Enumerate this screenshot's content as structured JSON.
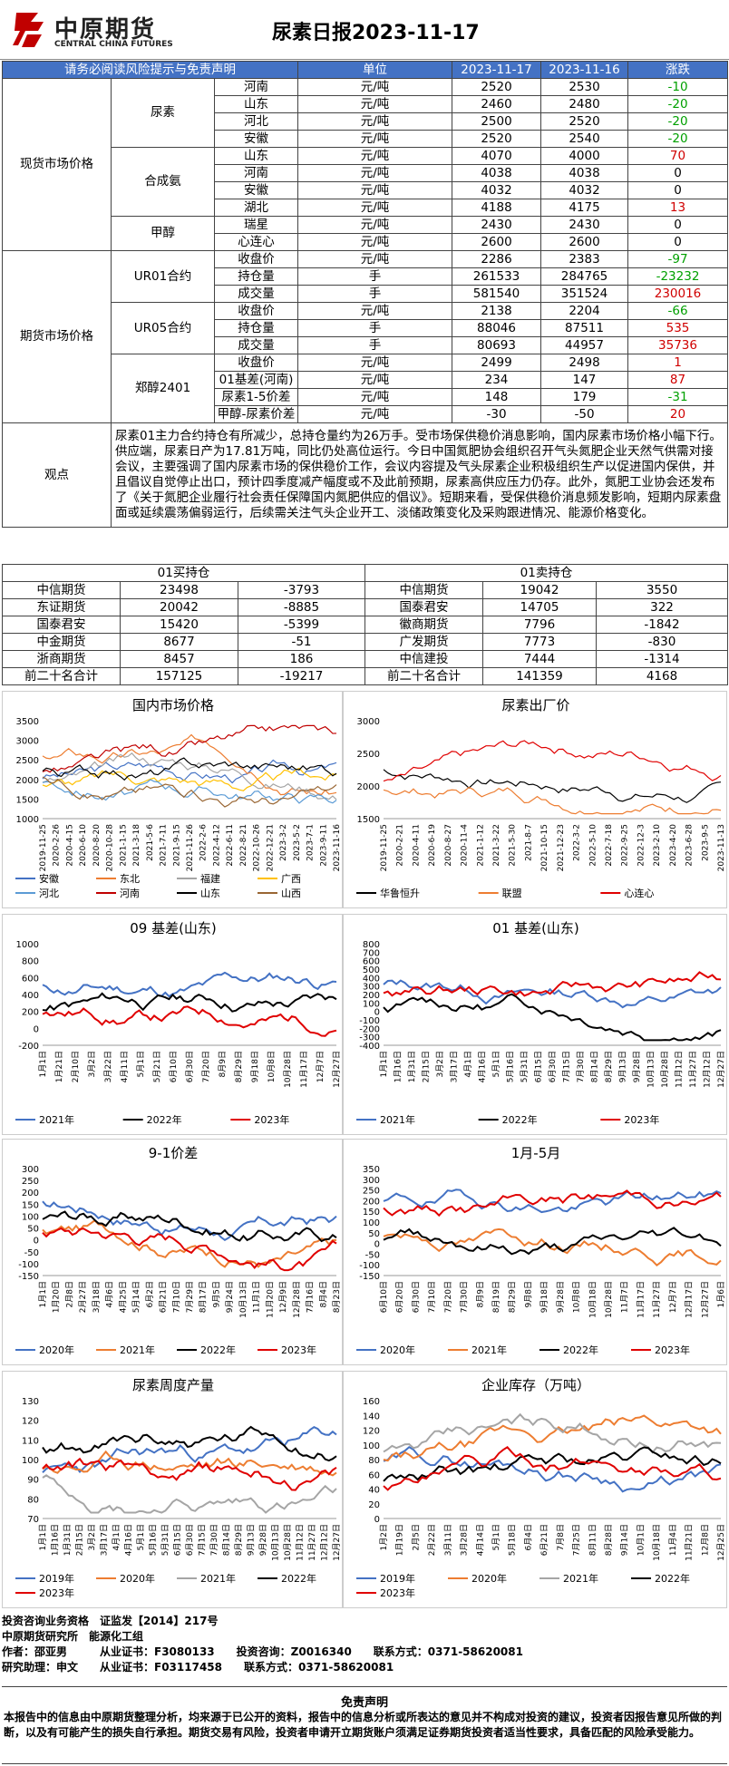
{
  "header": {
    "logo_cn": "中原期货",
    "logo_en": "CENTRAL CHINA FUTURES",
    "title": "尿素日报2023-11-17",
    "brand_color": "#c00000"
  },
  "table": {
    "header": [
      "请务必阅读风险提示与免责声明",
      "单位",
      "2023-11-17",
      "2023-11-16",
      "涨跌"
    ],
    "spot_label": "现货市场价格",
    "spot": [
      {
        "group": "尿素",
        "name": "河南",
        "unit": "元/吨",
        "a": "2520",
        "b": "2530",
        "chg": "-10",
        "c": "green"
      },
      {
        "group": "",
        "name": "山东",
        "unit": "元/吨",
        "a": "2460",
        "b": "2480",
        "chg": "-20",
        "c": "green"
      },
      {
        "group": "",
        "name": "河北",
        "unit": "元/吨",
        "a": "2500",
        "b": "2520",
        "chg": "-20",
        "c": "green"
      },
      {
        "group": "",
        "name": "安徽",
        "unit": "元/吨",
        "a": "2520",
        "b": "2540",
        "chg": "-20",
        "c": "green"
      },
      {
        "group": "合成氨",
        "name": "山东",
        "unit": "元/吨",
        "a": "4070",
        "b": "4000",
        "chg": "70",
        "c": "red"
      },
      {
        "group": "",
        "name": "河南",
        "unit": "元/吨",
        "a": "4038",
        "b": "4038",
        "chg": "0",
        "c": ""
      },
      {
        "group": "",
        "name": "安徽",
        "unit": "元/吨",
        "a": "4032",
        "b": "4032",
        "chg": "0",
        "c": ""
      },
      {
        "group": "",
        "name": "湖北",
        "unit": "元/吨",
        "a": "4188",
        "b": "4175",
        "chg": "13",
        "c": "red"
      },
      {
        "group": "甲醇",
        "name": "瑞星",
        "unit": "元/吨",
        "a": "2430",
        "b": "2430",
        "chg": "0",
        "c": ""
      },
      {
        "group": "",
        "name": "心连心",
        "unit": "元/吨",
        "a": "2600",
        "b": "2600",
        "chg": "0",
        "c": ""
      }
    ],
    "fut_label": "期货市场价格",
    "fut": [
      {
        "group": "UR01合约",
        "name": "收盘价",
        "unit": "元/吨",
        "a": "2286",
        "b": "2383",
        "chg": "-97",
        "c": "green"
      },
      {
        "group": "",
        "name": "持仓量",
        "unit": "手",
        "a": "261533",
        "b": "284765",
        "chg": "-23232",
        "c": "green"
      },
      {
        "group": "",
        "name": "成交量",
        "unit": "手",
        "a": "581540",
        "b": "351524",
        "chg": "230016",
        "c": "red"
      },
      {
        "group": "UR05合约",
        "name": "收盘价",
        "unit": "元/吨",
        "a": "2138",
        "b": "2204",
        "chg": "-66",
        "c": "green"
      },
      {
        "group": "",
        "name": "持仓量",
        "unit": "手",
        "a": "88046",
        "b": "87511",
        "chg": "535",
        "c": "red"
      },
      {
        "group": "",
        "name": "成交量",
        "unit": "手",
        "a": "80693",
        "b": "44957",
        "chg": "35736",
        "c": "red"
      },
      {
        "group": "郑醇2401",
        "name": "收盘价",
        "unit": "元/吨",
        "a": "2499",
        "b": "2498",
        "chg": "1",
        "c": "red"
      },
      {
        "group": "",
        "name": "01基差(河南)",
        "unit": "元/吨",
        "a": "234",
        "b": "147",
        "chg": "87",
        "c": "red"
      },
      {
        "group": "",
        "name": "尿素1-5价差",
        "unit": "元/吨",
        "a": "148",
        "b": "179",
        "chg": "-31",
        "c": "green"
      },
      {
        "group": "",
        "name": "甲醇-尿素价差",
        "unit": "元/吨",
        "a": "-30",
        "b": "-50",
        "chg": "20",
        "c": "red"
      }
    ],
    "obs_label": "观点",
    "obs_text": "尿素01主力合约持仓有所减少，总持仓量约为26万手。受市场保供稳价消息影响，国内尿素市场价格小幅下行。供应端，尿素日产为17.81万吨，同比仍处高位运行。今日中国氮肥协会组织召开气头氮肥企业天然气供需对接会议，主要强调了国内尿素市场的保供稳价工作，会议内容提及气头尿素企业积极组织生产以促进国内保供，并且倡议自觉停止出口，预计四季度减产幅度或不及此前预期，尿素高供应压力仍存。此外，氮肥工业协会还发布了《关于氮肥企业履行社会责任保障国内氮肥供应的倡议》。短期来看，受保供稳价消息频发影响，短期内尿素盘面或延续震荡偏弱运行，后续需关注气头企业开工、淡储政策变化及采购跟进情况、能源价格变化。"
  },
  "positions": {
    "head_left": "01买持仓",
    "head_right": "01卖持仓",
    "rows": [
      {
        "l": "中信期货",
        "lv": "23498",
        "lc": "-3793",
        "r": "中信期货",
        "rv": "19042",
        "rc": "3550"
      },
      {
        "l": "东证期货",
        "lv": "20042",
        "lc": "-8885",
        "r": "国泰君安",
        "rv": "14705",
        "rc": "322"
      },
      {
        "l": "国泰君安",
        "lv": "15420",
        "lc": "-5399",
        "r": "徽商期货",
        "rv": "7796",
        "rc": "-1842"
      },
      {
        "l": "中金期货",
        "lv": "8677",
        "lc": "-51",
        "r": "广发期货",
        "rv": "7773",
        "rc": "-830"
      },
      {
        "l": "浙商期货",
        "lv": "8457",
        "lc": "186",
        "r": "中信建投",
        "rv": "7444",
        "rc": "-1314"
      },
      {
        "l": "前二十名合计",
        "lv": "157125",
        "lc": "-19217",
        "r": "前二十名合计",
        "rv": "141359",
        "rc": "4168"
      }
    ]
  },
  "chart_data": [
    {
      "type": "line",
      "title": "国内市场价格",
      "yticks": [
        "3500",
        "3000",
        "2500",
        "2000",
        "1500",
        "1000"
      ],
      "xticks": [
        "2019-11-25",
        "2020-2-26",
        "2020-4-15",
        "2020-6-10",
        "2020-8-20",
        "2020-10-28",
        "2021-1-15",
        "2021-3-18",
        "2021-5-6",
        "2021-7-11",
        "2021-9-15",
        "2021-11-26",
        "2022-2-6",
        "2022-4-12",
        "2022-6-11",
        "2022-8-21",
        "2022-10-26",
        "2022-12-21",
        "2023-3-2",
        "2023-5-2",
        "2023-7-1",
        "2023-9-11",
        "2023-11-16"
      ],
      "legend": [
        "安徽",
        "东北",
        "福建",
        "广西",
        "河北",
        "河南",
        "山东",
        "山西"
      ],
      "colors": [
        "#4472c4",
        "#ed7d31",
        "#a5a5a5",
        "#ffc000",
        "#5b9bd5",
        "#c00000",
        "#000000",
        "#996633"
      ],
      "ylim": [
        1000,
        3500
      ]
    },
    {
      "type": "line",
      "title": "尿素出厂价",
      "yticks": [
        "3000",
        "2500",
        "2000",
        "1500"
      ],
      "xticks": [
        "2019-11-25",
        "2020-2-21",
        "2020-4-11",
        "2020-6-19",
        "2020-8-27",
        "2020-11-4",
        "2021-1-12",
        "2021-3-22",
        "2021-5-30",
        "2021-8-7",
        "2021-10-15",
        "2021-12-23",
        "2022-3-2",
        "2022-5-10",
        "2022-7-18",
        "2022-9-25",
        "2022-12-3",
        "2023-2-10",
        "2023-4-20",
        "2023-6-28",
        "2023-9-5",
        "2023-11-13"
      ],
      "legend": [
        "华鲁恒升",
        "联盟",
        "心连心"
      ],
      "colors": [
        "#000000",
        "#ed7d31",
        "#e00000"
      ],
      "ylim": [
        1500,
        3300
      ]
    },
    {
      "type": "line",
      "title": "09 基差(山东)",
      "yticks": [
        "1000",
        "800",
        "600",
        "400",
        "200",
        "0",
        "-200"
      ],
      "xticks": [
        "1月1日",
        "1月21日",
        "2月10日",
        "3月2日",
        "3月22日",
        "4月11日",
        "5月1日",
        "5月21日",
        "6月10日",
        "6月30日",
        "7月20日",
        "8月9日",
        "8月29日",
        "9月18日",
        "10月8日",
        "10月28日",
        "11月17日",
        "12月7日",
        "12月27日"
      ],
      "legend": [
        "2021年",
        "2022年",
        "2023年"
      ],
      "colors": [
        "#4472c4",
        "#000000",
        "#e00000"
      ],
      "ylim": [
        -200,
        1000
      ]
    },
    {
      "type": "line",
      "title": "01 基差(山东)",
      "yticks": [
        "800",
        "700",
        "600",
        "500",
        "400",
        "300",
        "200",
        "100",
        "0",
        "-100",
        "-200",
        "-300",
        "-400"
      ],
      "xticks": [
        "1月1日",
        "1月16日",
        "1月31日",
        "2月15日",
        "3月2日",
        "3月17日",
        "4月1日",
        "4月16日",
        "5月1日",
        "5月16日",
        "5月31日",
        "6月15日",
        "6月30日",
        "7月15日",
        "7月30日",
        "8月14日",
        "8月29日",
        "9月13日",
        "9月28日",
        "10月13日",
        "10月28日",
        "11月12日",
        "11月27日",
        "12月12日",
        "12月27日"
      ],
      "legend": [
        "2021年",
        "2022年",
        "2023年"
      ],
      "colors": [
        "#4472c4",
        "#000000",
        "#e00000"
      ],
      "ylim": [
        -400,
        800
      ]
    },
    {
      "type": "line",
      "title": "9-1价差",
      "yticks": [
        "300",
        "250",
        "200",
        "150",
        "100",
        "50",
        "0",
        "-50",
        "-100",
        "-150"
      ],
      "xticks": [
        "1月1日",
        "1月20日",
        "2月8日",
        "2月27日",
        "3月18日",
        "4月6日",
        "4月25日",
        "5月14日",
        "6月2日",
        "6月21日",
        "7月10日",
        "7月29日",
        "8月17日",
        "9月5日",
        "9月24日",
        "10月13日",
        "11月1日",
        "11月20日",
        "12月9日",
        "12月28日",
        "7月16日",
        "8月4日",
        "8月23日"
      ],
      "legend": [
        "2020年",
        "2021年",
        "2022年",
        "2023年"
      ],
      "colors": [
        "#4472c4",
        "#ed7d31",
        "#000000",
        "#e00000"
      ],
      "ylim": [
        -150,
        300
      ]
    },
    {
      "type": "line",
      "title": "1月-5月",
      "yticks": [
        "350",
        "300",
        "250",
        "200",
        "150",
        "100",
        "50",
        "0",
        "-50",
        "-100",
        "-150"
      ],
      "xticks": [
        "6月10日",
        "6月20日",
        "6月30日",
        "7月10日",
        "7月20日",
        "7月30日",
        "8月9日",
        "8月19日",
        "8月29日",
        "9月8日",
        "9月18日",
        "9月28日",
        "10月8日",
        "10月18日",
        "10月28日",
        "11月7日",
        "11月17日",
        "11月27日",
        "12月7日",
        "12月17日",
        "12月27日",
        "1月6日",
        "1月16日",
        "1月26日",
        "2月5日",
        "2月15日",
        "2月25日",
        "3月7日",
        "3月17日",
        "3月27日",
        "4月6日",
        "4月16日",
        "4月26日",
        "5月6日",
        "5月16日",
        "5月26日",
        "6月5日",
        "6月15日",
        "6月25日",
        "7月5日",
        "7月15日",
        "7月25日",
        "8月4日",
        "8月14日",
        "8月24日",
        "9月3日",
        "9月13日",
        "9月23日",
        "10月3日",
        "10月13日",
        "10月23日",
        "11月2日",
        "11月12日",
        "11月22日",
        "12月2日",
        "12月12日",
        "12月22日",
        "12月25日",
        "12月30日"
      ],
      "legend": [
        "2020年",
        "2021年",
        "2022年",
        "2023年"
      ],
      "colors": [
        "#4472c4",
        "#ed7d31",
        "#000000",
        "#e00000"
      ],
      "ylim": [
        -150,
        350
      ]
    },
    {
      "type": "line",
      "title": "尿素周度产量",
      "yticks": [
        "130",
        "120",
        "110",
        "100",
        "90",
        "80",
        "70"
      ],
      "xticks": [
        "1月1日",
        "1月16日",
        "1月31日",
        "2月15日",
        "3月2日",
        "3月17日",
        "4月1日",
        "4月16日",
        "5月1日",
        "5月16日",
        "5月31日",
        "6月15日",
        "6月30日",
        "7月15日",
        "7月30日",
        "8月14日",
        "8月29日",
        "9月13日",
        "9月28日",
        "10月13日",
        "10月28日",
        "11月12日",
        "11月27日",
        "12月12日",
        "12月27日"
      ],
      "legend": [
        "2019年",
        "2020年",
        "2021年",
        "2022年",
        "2023年"
      ],
      "colors": [
        "#4472c4",
        "#ed7d31",
        "#a5a5a5",
        "#000000",
        "#e00000"
      ],
      "ylim": [
        70,
        130
      ]
    },
    {
      "type": "line",
      "title": "企业库存（万吨）",
      "yticks": [
        "160",
        "140",
        "120",
        "100",
        "80",
        "60",
        "40",
        "20",
        "0"
      ],
      "xticks": [
        "1月2日",
        "1月19日",
        "2月5日",
        "2月22日",
        "3月11日",
        "3月28日",
        "4月14日",
        "5月1日",
        "5月18日",
        "6月4日",
        "6月21日",
        "7月8日",
        "7月25日",
        "8月11日",
        "8月28日",
        "9月14日",
        "10月1日",
        "10月18日",
        "11月4日",
        "11月21日",
        "12月8日",
        "12月25日"
      ],
      "legend": [
        "2019年",
        "2020年",
        "2021年",
        "2022年",
        "2023年"
      ],
      "colors": [
        "#4472c4",
        "#ed7d31",
        "#a5a5a5",
        "#000000",
        "#e00000"
      ],
      "ylim": [
        0,
        160
      ]
    }
  ],
  "footer": {
    "l1": "投资咨询业务资格　证监发【2014】217号",
    "l2": "中原期货研究所　能源化工组",
    "l3": "作者：邵亚男　　　从业证书：F3080133　　投资咨询：Z0016340　　联系方式：0371-58620081",
    "l4": "研究助理：申文　　从业证书：F03117458　　联系方式：0371-58620081",
    "disc_title": "免责声明",
    "disc_body": "本报告中的信息由中原期货整理分析，均来源于已公开的资料，报告中的信息分析或所表达的意见并不构成对投资的建议，投资者因报告意见所做的判断，以及有可能产生的损失自行承担。期货交易有风险，投资者申请开立期货账户须满足证券期货投资者适当性要求，具备匹配的风险承受能力。"
  }
}
